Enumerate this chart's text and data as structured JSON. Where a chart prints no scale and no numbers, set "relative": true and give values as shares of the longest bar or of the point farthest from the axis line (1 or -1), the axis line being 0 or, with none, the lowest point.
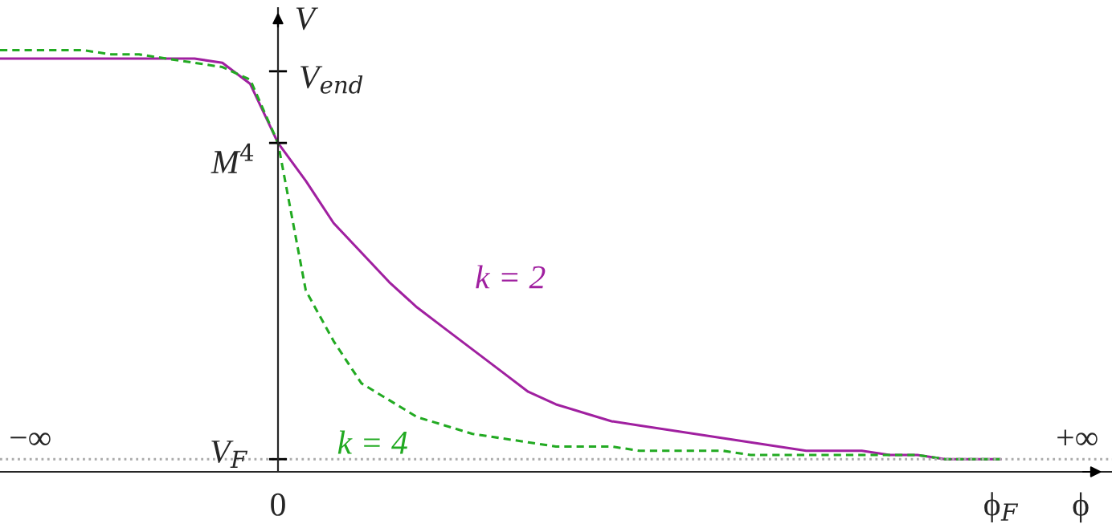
{
  "chart_data": {
    "type": "line",
    "relative": true,
    "xlabel": "ϕ",
    "ylabel": "V",
    "categories": [
      null,
      null,
      null,
      null,
      null,
      null,
      null,
      null,
      null,
      null,
      "0",
      null,
      null,
      null,
      null,
      null,
      null,
      null,
      null,
      null,
      null,
      null,
      null,
      null,
      null,
      null,
      null,
      null,
      null,
      null,
      null,
      null,
      null,
      null,
      null,
      null,
      "ϕ$_{F}$"
    ],
    "series": [
      {
        "name": "k = 2",
        "color": "#a020a0",
        "line_style": "solid",
        "values": [
          0.98,
          0.98,
          0.98,
          0.98,
          0.98,
          0.98,
          0.98,
          0.98,
          0.97,
          0.92,
          0.78,
          0.69,
          0.59,
          0.52,
          0.45,
          0.39,
          0.34,
          0.29,
          0.24,
          0.19,
          0.16,
          0.14,
          0.12,
          0.11,
          0.1,
          0.09,
          0.08,
          0.07,
          0.06,
          0.05,
          0.05,
          0.05,
          0.04,
          0.04,
          0.03,
          0.03,
          0.03
        ]
      },
      {
        "name": "k = 4",
        "color": "#22aa22",
        "line_style": "dashed",
        "values": [
          1.0,
          1.0,
          1.0,
          1.0,
          0.99,
          0.99,
          0.98,
          0.97,
          0.96,
          0.93,
          0.78,
          0.43,
          0.31,
          0.21,
          0.17,
          0.13,
          0.11,
          0.09,
          0.08,
          0.07,
          0.06,
          0.06,
          0.06,
          0.05,
          0.05,
          0.05,
          0.05,
          0.04,
          0.04,
          0.04,
          0.04,
          0.04,
          0.04,
          0.04,
          0.03,
          0.03,
          0.03
        ]
      }
    ],
    "ref_lines": [
      {
        "axis": "y",
        "value": 0.03,
        "label": "V$_{F}$",
        "color": "#aaaaaa",
        "line_style": "dotted"
      }
    ],
    "annotations": [
      "V$_{end}$",
      {
        "text": "M$^{4}$",
        "x": "0",
        "y": 0.78
      },
      "−∞",
      "+∞"
    ]
  }
}
